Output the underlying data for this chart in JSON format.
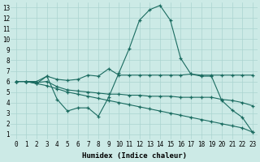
{
  "xlabel": "Humidex (Indice chaleur)",
  "bg_color": "#cceae6",
  "grid_color": "#aad4d0",
  "line_color": "#1a6b60",
  "xlim": [
    -0.5,
    23.5
  ],
  "ylim": [
    0.5,
    13.5
  ],
  "xticks": [
    0,
    1,
    2,
    3,
    4,
    5,
    6,
    7,
    8,
    9,
    10,
    11,
    12,
    13,
    14,
    15,
    16,
    17,
    18,
    19,
    20,
    21,
    22,
    23
  ],
  "yticks": [
    1,
    2,
    3,
    4,
    5,
    6,
    7,
    8,
    9,
    10,
    11,
    12,
    13
  ],
  "line_peak_x": [
    0,
    1,
    2,
    3,
    4,
    5,
    6,
    7,
    8,
    9,
    10,
    11,
    12,
    13,
    14,
    15,
    16,
    17,
    18,
    19,
    20,
    21,
    22,
    23
  ],
  "line_peak_y": [
    6,
    6,
    5.8,
    6.5,
    4.3,
    3.2,
    3.5,
    3.5,
    2.7,
    4.5,
    6.8,
    9.1,
    11.8,
    12.8,
    13.2,
    11.8,
    8.2,
    6.7,
    6.5,
    6.5,
    4.2,
    3.3,
    2.6,
    1.2
  ],
  "line_upper_x": [
    0,
    1,
    2,
    3,
    4,
    5,
    6,
    7,
    8,
    9,
    10,
    11,
    12,
    13,
    14,
    15,
    16,
    17,
    18,
    19,
    20,
    21,
    22,
    23
  ],
  "line_upper_y": [
    6,
    6,
    6,
    6.5,
    6.2,
    6.1,
    6.2,
    6.6,
    6.5,
    7.2,
    6.6,
    6.6,
    6.6,
    6.6,
    6.6,
    6.6,
    6.6,
    6.7,
    6.6,
    6.6,
    6.6,
    6.6,
    6.6,
    6.6
  ],
  "line_mid_x": [
    0,
    1,
    2,
    3,
    4,
    5,
    6,
    7,
    8,
    9,
    10,
    11,
    12,
    13,
    14,
    15,
    16,
    17,
    18,
    19,
    20,
    21,
    22,
    23
  ],
  "line_mid_y": [
    6,
    6,
    5.9,
    6.0,
    5.5,
    5.2,
    5.1,
    5.0,
    4.9,
    4.8,
    4.8,
    4.7,
    4.7,
    4.6,
    4.6,
    4.6,
    4.5,
    4.5,
    4.5,
    4.5,
    4.3,
    4.2,
    4.0,
    3.7
  ],
  "line_low_x": [
    0,
    1,
    2,
    3,
    4,
    5,
    6,
    7,
    8,
    9,
    10,
    11,
    12,
    13,
    14,
    15,
    16,
    17,
    18,
    19,
    20,
    21,
    22,
    23
  ],
  "line_low_y": [
    6,
    6,
    5.8,
    5.6,
    5.3,
    5.0,
    4.8,
    4.6,
    4.4,
    4.2,
    4.0,
    3.8,
    3.6,
    3.4,
    3.2,
    3.0,
    2.8,
    2.6,
    2.4,
    2.2,
    2.0,
    1.8,
    1.6,
    1.2
  ]
}
